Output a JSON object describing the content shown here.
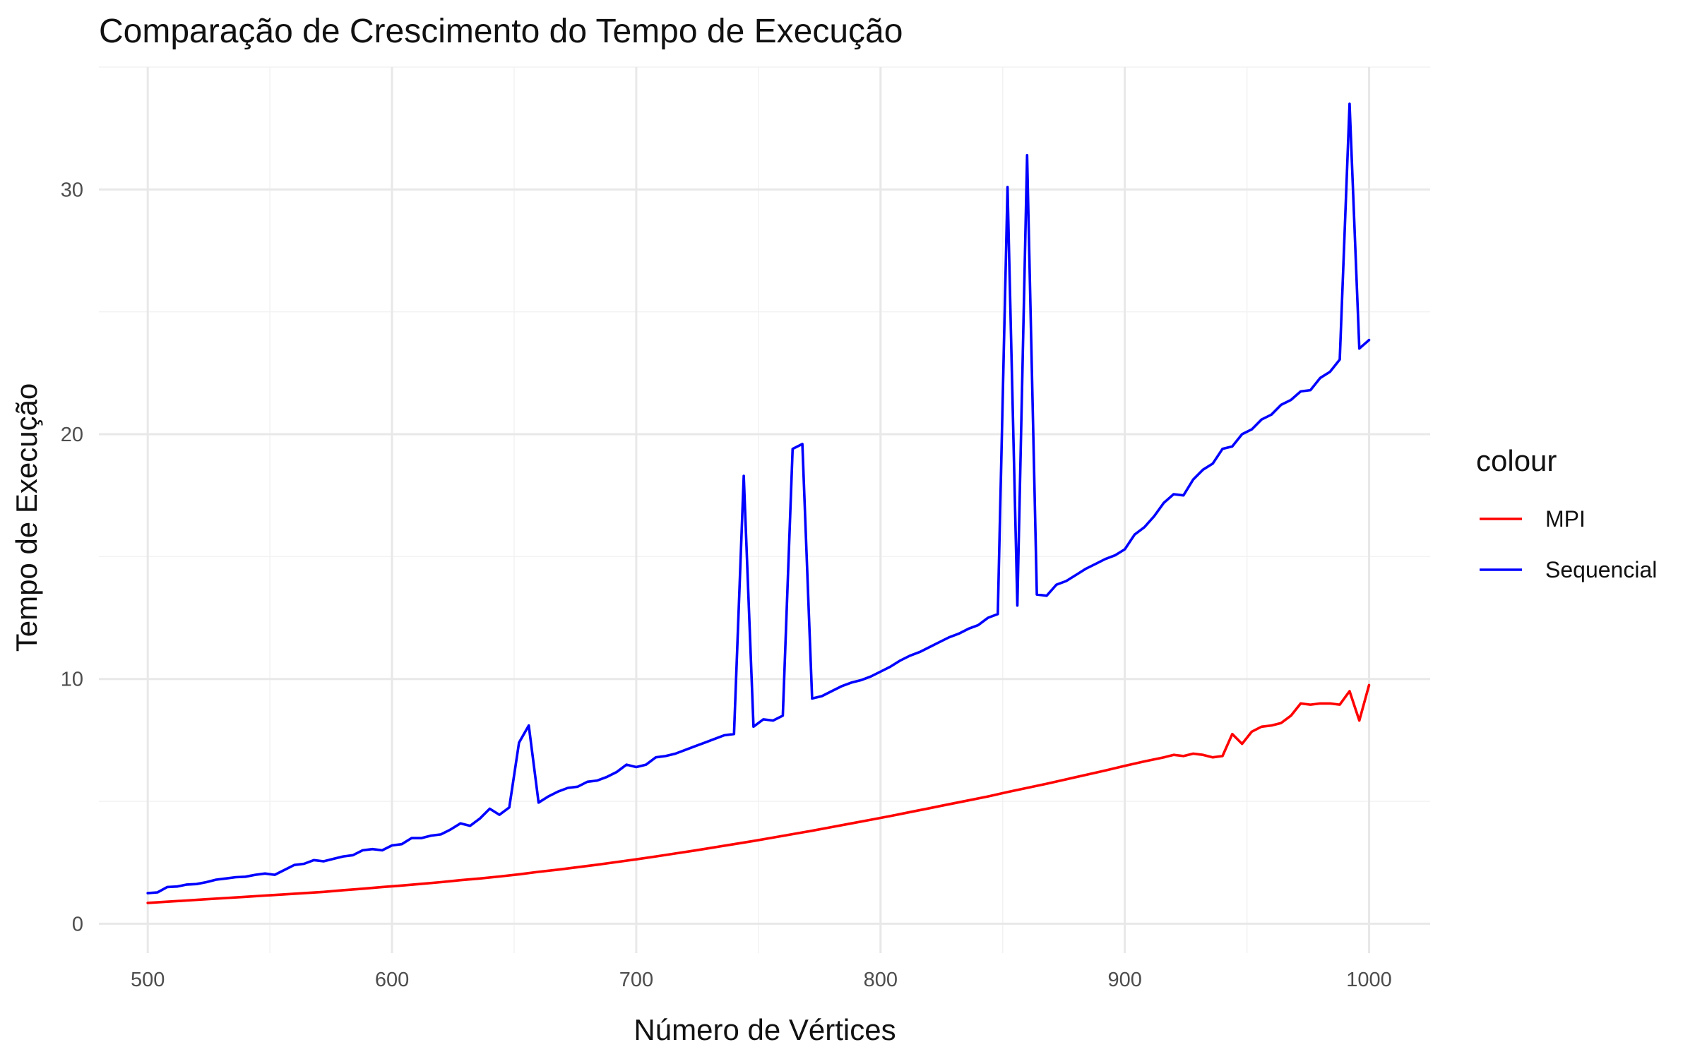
{
  "chart_data": {
    "type": "line",
    "title": "Comparação de Crescimento do Tempo de Execução",
    "xlabel": "Número de Vértices",
    "ylabel": "Tempo de Execução",
    "xlim": [
      480,
      1025
    ],
    "ylim": [
      -1.2,
      35.0
    ],
    "x_ticks": [
      500,
      600,
      700,
      800,
      900,
      1000
    ],
    "y_ticks": [
      0,
      10,
      20,
      30
    ],
    "grid": true,
    "legend": {
      "title": "colour",
      "position": "right"
    },
    "series": [
      {
        "name": "MPI",
        "color": "#FF0000",
        "x": [
          500,
          508,
          516,
          524,
          532,
          540,
          548,
          556,
          564,
          572,
          580,
          588,
          596,
          604,
          612,
          620,
          628,
          636,
          644,
          652,
          660,
          668,
          676,
          684,
          692,
          700,
          708,
          716,
          724,
          732,
          740,
          748,
          756,
          764,
          772,
          780,
          788,
          796,
          804,
          812,
          820,
          828,
          836,
          844,
          852,
          860,
          868,
          876,
          884,
          892,
          900,
          908,
          916,
          920,
          924,
          928,
          932,
          936,
          940,
          944,
          948,
          952,
          956,
          960,
          964,
          968,
          972,
          976,
          980,
          984,
          988,
          992,
          996,
          1000
        ],
        "values": [
          0.85,
          0.9,
          0.95,
          1.0,
          1.05,
          1.1,
          1.15,
          1.2,
          1.25,
          1.3,
          1.37,
          1.43,
          1.5,
          1.56,
          1.63,
          1.7,
          1.78,
          1.85,
          1.93,
          2.02,
          2.12,
          2.21,
          2.31,
          2.41,
          2.52,
          2.63,
          2.75,
          2.87,
          2.99,
          3.12,
          3.25,
          3.38,
          3.52,
          3.66,
          3.8,
          3.95,
          4.1,
          4.25,
          4.4,
          4.56,
          4.72,
          4.88,
          5.04,
          5.2,
          5.38,
          5.55,
          5.72,
          5.9,
          6.08,
          6.26,
          6.45,
          6.63,
          6.8,
          6.9,
          6.85,
          6.95,
          6.9,
          6.8,
          6.85,
          7.75,
          7.35,
          7.85,
          8.05,
          8.1,
          8.2,
          8.5,
          9.0,
          8.95,
          9.0,
          9.0,
          8.95,
          9.5,
          8.3,
          9.75
        ]
      },
      {
        "name": "Sequencial",
        "color": "#0000FF",
        "x": [
          500,
          504,
          508,
          512,
          516,
          520,
          524,
          528,
          532,
          536,
          540,
          544,
          548,
          552,
          556,
          560,
          564,
          568,
          572,
          576,
          580,
          584,
          588,
          592,
          596,
          600,
          604,
          608,
          612,
          616,
          620,
          624,
          628,
          632,
          636,
          640,
          644,
          648,
          652,
          656,
          660,
          664,
          668,
          672,
          676,
          680,
          684,
          688,
          692,
          696,
          700,
          704,
          708,
          712,
          716,
          720,
          724,
          728,
          732,
          736,
          740,
          744,
          748,
          752,
          756,
          760,
          764,
          768,
          772,
          776,
          780,
          784,
          788,
          792,
          796,
          800,
          804,
          808,
          812,
          816,
          820,
          824,
          828,
          832,
          836,
          840,
          844,
          848,
          852,
          856,
          860,
          864,
          868,
          872,
          876,
          880,
          884,
          888,
          892,
          896,
          900,
          904,
          908,
          912,
          916,
          920,
          924,
          928,
          932,
          936,
          940,
          944,
          948,
          952,
          956,
          960,
          964,
          968,
          972,
          976,
          980,
          984,
          988,
          992,
          996,
          1000
        ],
        "values": [
          1.25,
          1.28,
          1.5,
          1.52,
          1.6,
          1.62,
          1.7,
          1.8,
          1.85,
          1.9,
          1.92,
          2.0,
          2.05,
          2.0,
          2.2,
          2.4,
          2.45,
          2.6,
          2.55,
          2.65,
          2.75,
          2.8,
          3.0,
          3.05,
          3.0,
          3.2,
          3.25,
          3.5,
          3.5,
          3.6,
          3.65,
          3.85,
          4.1,
          4.0,
          4.3,
          4.7,
          4.45,
          4.75,
          7.4,
          8.1,
          4.95,
          5.2,
          5.4,
          5.55,
          5.6,
          5.8,
          5.85,
          6.0,
          6.2,
          6.5,
          6.4,
          6.5,
          6.8,
          6.85,
          6.95,
          7.1,
          7.25,
          7.4,
          7.55,
          7.7,
          7.75,
          18.3,
          8.05,
          8.35,
          8.3,
          8.5,
          19.4,
          19.6,
          9.2,
          9.3,
          9.5,
          9.7,
          9.85,
          9.95,
          10.1,
          10.3,
          10.5,
          10.75,
          10.95,
          11.1,
          11.3,
          11.5,
          11.7,
          11.85,
          12.05,
          12.2,
          12.5,
          12.65,
          30.1,
          13.0,
          31.4,
          13.45,
          13.4,
          13.85,
          14.0,
          14.25,
          14.5,
          14.7,
          14.9,
          15.05,
          15.3,
          15.9,
          16.2,
          16.65,
          17.2,
          17.55,
          17.5,
          18.15,
          18.55,
          18.8,
          19.4,
          19.5,
          20.0,
          20.2,
          20.6,
          20.8,
          21.2,
          21.4,
          21.75,
          21.8,
          22.3,
          22.55,
          23.05,
          33.5,
          23.5,
          23.85
        ]
      }
    ]
  }
}
